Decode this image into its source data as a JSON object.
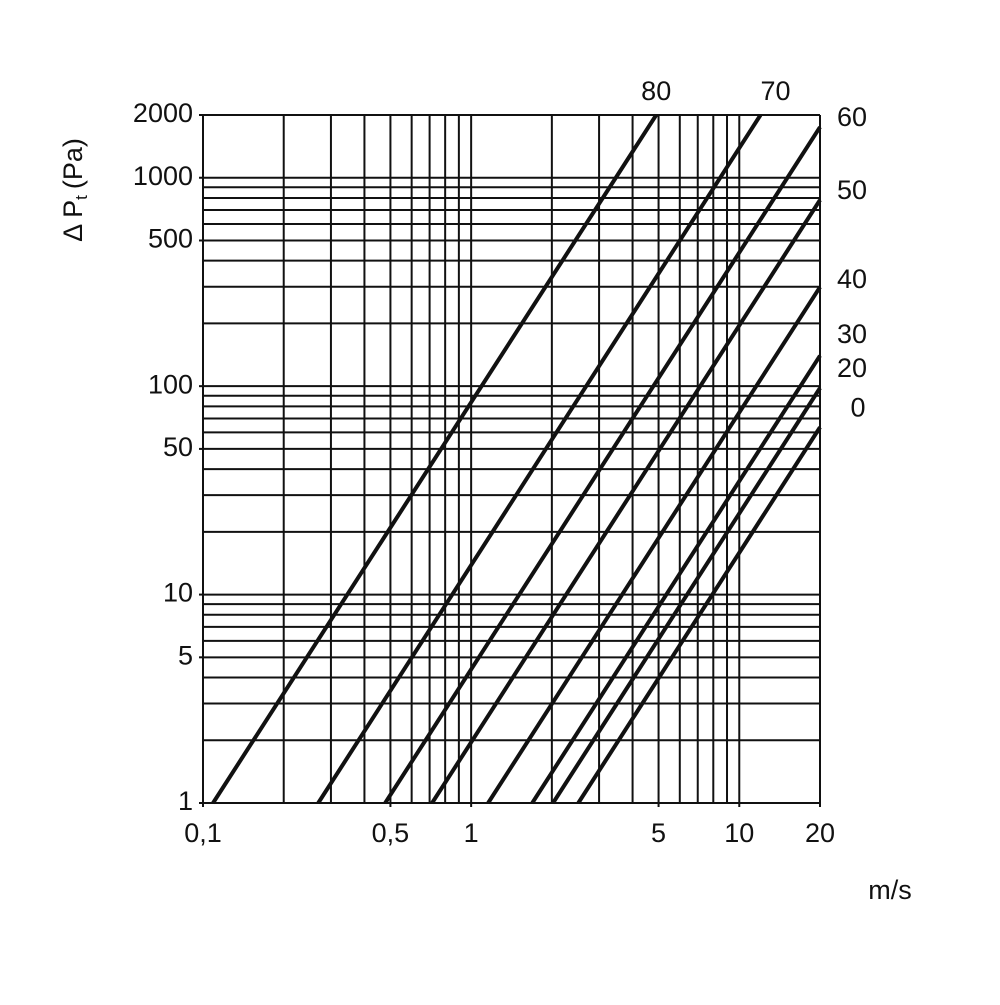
{
  "chart_data": {
    "type": "line",
    "xlabel": "m/s",
    "ylabel": {
      "symbol": "Δ P",
      "subscript": "t",
      "unit": "(Pa)"
    },
    "xscale": "log",
    "yscale": "log",
    "xlim": [
      0.1,
      20
    ],
    "ylim": [
      1,
      2000
    ],
    "xticks": [
      {
        "value": 0.1,
        "label": "0,1"
      },
      {
        "value": 0.5,
        "label": "0,5"
      },
      1,
      5,
      10,
      20
    ],
    "yticks": [
      1,
      5,
      10,
      50,
      100,
      500,
      1000,
      2000
    ],
    "xgrid": [
      0.1,
      0.2,
      0.3,
      0.4,
      0.5,
      0.6,
      0.7,
      0.8,
      0.9,
      1,
      2,
      3,
      4,
      5,
      6,
      7,
      8,
      9,
      10,
      20
    ],
    "ygrid": [
      1,
      2,
      3,
      4,
      5,
      6,
      7,
      8,
      9,
      10,
      20,
      30,
      40,
      50,
      60,
      70,
      80,
      90,
      100,
      200,
      300,
      400,
      500,
      600,
      700,
      800,
      900,
      1000,
      2000
    ],
    "color": "#111111",
    "series": [
      {
        "name": "80",
        "x": [
          0.109,
          4.9
        ],
        "values": [
          1,
          2000
        ]
      },
      {
        "name": "70",
        "x": [
          0.269,
          12.0
        ],
        "values": [
          1,
          2000
        ]
      },
      {
        "name": "60",
        "x": [
          0.478,
          20
        ],
        "values": [
          1,
          1750
        ]
      },
      {
        "name": "50",
        "x": [
          0.715,
          20
        ],
        "values": [
          1,
          782
        ]
      },
      {
        "name": "40",
        "x": [
          1.157,
          20
        ],
        "values": [
          1,
          299
        ]
      },
      {
        "name": "30",
        "x": [
          1.69,
          20
        ],
        "values": [
          1,
          140
        ]
      },
      {
        "name": "20",
        "x": [
          2.02,
          20
        ],
        "values": [
          1,
          98
        ]
      },
      {
        "name": "0",
        "x": [
          2.51,
          20
        ],
        "values": [
          1,
          63.5
        ]
      }
    ]
  }
}
